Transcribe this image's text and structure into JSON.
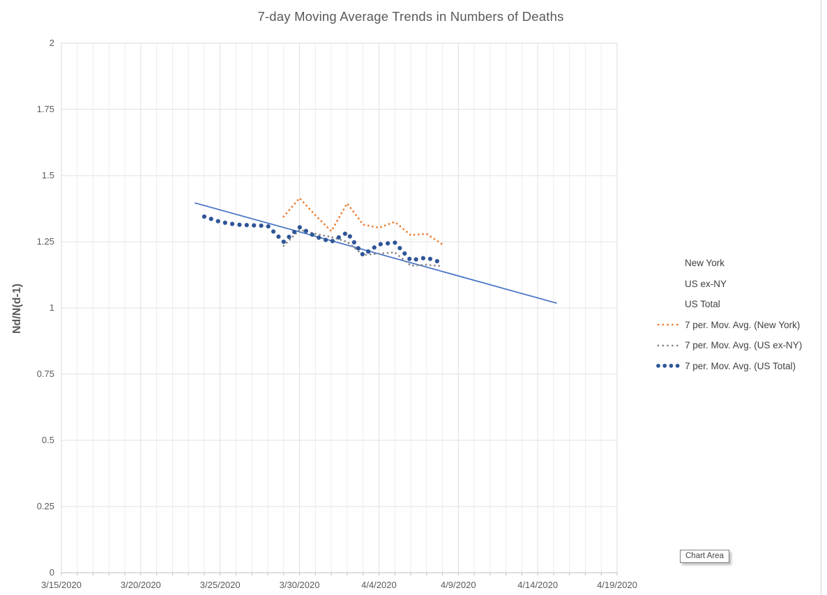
{
  "chart": {
    "title": "7-day Moving Average Trends in Numbers of Deaths",
    "y_axis_title": "Nd/N(d-1)",
    "tooltip": "Chart Area"
  },
  "legend": {
    "position": "right",
    "items": [
      {
        "label": "New York",
        "marker": "none",
        "color": "#ED7D31"
      },
      {
        "label": "US ex-NY",
        "marker": "none",
        "color": "#898989"
      },
      {
        "label": "US Total",
        "marker": "none",
        "color": "#2E5597"
      },
      {
        "label": "7 per. Mov. Avg. (New York)",
        "marker": "dot-small",
        "color": "#ED7D31"
      },
      {
        "label": "7 per. Mov. Avg. (US ex-NY)",
        "marker": "dot-small",
        "color": "#898989"
      },
      {
        "label": "7 per. Mov. Avg. (US Total)",
        "marker": "dot-large",
        "color": "#2E5597"
      }
    ]
  },
  "chart_data": {
    "type": "scatter",
    "title": "7-day Moving Average Trends in Numbers of Deaths",
    "xlabel": "",
    "ylabel": "Nd/N(d-1)",
    "ylim": [
      0,
      2
    ],
    "y_axis": {
      "min": 0,
      "max": 2,
      "major_unit": 0.25
    },
    "x_axis": {
      "start_date": "3/15/2020",
      "end_date": "4/19/2020",
      "minor_unit_days": 1,
      "major_unit_days": 5
    },
    "grid": true,
    "legend_position": "right",
    "y_ticks": [
      {
        "label": "2",
        "value": 2
      },
      {
        "label": "1.75",
        "value": 1.75
      },
      {
        "label": "1.5",
        "value": 1.5
      },
      {
        "label": "1.25",
        "value": 1.25
      },
      {
        "label": "1",
        "value": 1
      },
      {
        "label": "0.75",
        "value": 0.75
      },
      {
        "label": "0.5",
        "value": 0.5
      },
      {
        "label": "0.25",
        "value": 0.25
      },
      {
        "label": "0",
        "value": 0
      }
    ],
    "x_ticks": [
      {
        "label": "3/15/2020",
        "day": 0
      },
      {
        "label": "3/20/2020",
        "day": 5
      },
      {
        "label": "3/25/2020",
        "day": 10
      },
      {
        "label": "3/30/2020",
        "day": 15
      },
      {
        "label": "4/4/2020",
        "day": 20
      },
      {
        "label": "4/9/2020",
        "day": 25
      },
      {
        "label": "4/14/2020",
        "day": 30
      },
      {
        "label": "4/19/2020",
        "day": 35
      }
    ],
    "series": [
      {
        "name": "7 per. Mov. Avg. (New York)",
        "color": "#ED7D31",
        "style": "dot-small",
        "dates": [
          "3/29/2020",
          "3/30/2020",
          "3/31/2020",
          "4/1/2020",
          "4/2/2020",
          "4/3/2020",
          "4/4/2020",
          "4/5/2020",
          "4/6/2020",
          "4/7/2020",
          "4/8/2020"
        ],
        "values": [
          1.345,
          1.415,
          1.35,
          1.29,
          1.395,
          1.315,
          1.303,
          1.325,
          1.275,
          1.28,
          1.24
        ]
      },
      {
        "name": "7 per. Mov. Avg. (US ex-NY)",
        "color": "#898989",
        "style": "dot-small",
        "dates": [
          "3/29/2020",
          "3/30/2020",
          "3/31/2020",
          "4/1/2020",
          "4/2/2020",
          "4/3/2020",
          "4/4/2020",
          "4/5/2020",
          "4/6/2020",
          "4/7/2020",
          "4/8/2020"
        ],
        "values": [
          1.235,
          1.295,
          1.28,
          1.268,
          1.25,
          1.2,
          1.205,
          1.21,
          1.16,
          1.163,
          1.158
        ]
      },
      {
        "name": "7 per. Mov. Avg. (US Total)",
        "color": "#2E5597",
        "style": "dot-large",
        "dates": [
          "3/24/2020",
          "3/25/2020",
          "3/26/2020",
          "3/27/2020",
          "3/28/2020",
          "3/29/2020",
          "3/30/2020",
          "3/31/2020",
          "4/1/2020",
          "4/2/2020",
          "4/3/2020",
          "4/4/2020",
          "4/5/2020",
          "4/6/2020",
          "4/7/2020",
          "4/8/2020"
        ],
        "values": [
          1.345,
          1.325,
          1.315,
          1.312,
          1.31,
          1.25,
          1.305,
          1.27,
          1.25,
          1.285,
          1.2,
          1.24,
          1.247,
          1.18,
          1.19,
          1.17
        ]
      }
    ],
    "trendline": {
      "color": "#4472C4",
      "start_day": 8.4,
      "start_value": 1.397,
      "end_day": 31.2,
      "end_value": 1.018
    }
  }
}
